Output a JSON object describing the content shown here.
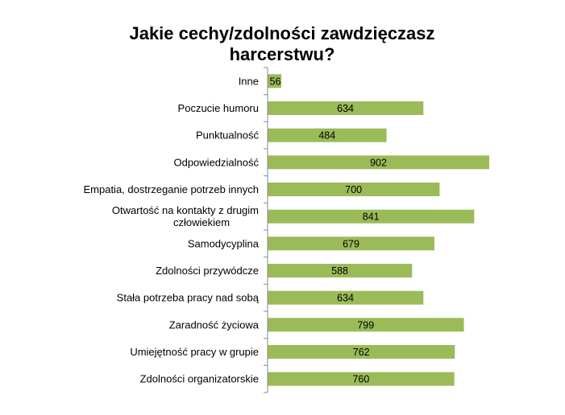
{
  "chart_data": {
    "type": "bar",
    "orientation": "horizontal",
    "title_lines": [
      "Jakie cechy/zdolności zawdzięczasz",
      "harcerstwu?"
    ],
    "categories": [
      "Inne",
      "Poczucie humoru",
      "Punktualność",
      "Odpowiedzialność",
      "Empatia, dostrzeganie potrzeb innych",
      "Otwartość na kontakty z drugim człowiekiem",
      "Samodycyplina",
      "Zdolności przywódcze",
      "Stała potrzeba pracy nad sobą",
      "Zaradność życiowa",
      "Umiejętność pracy w grupie",
      "Zdolności organizatorskie"
    ],
    "category_label_lines": [
      [
        "Inne"
      ],
      [
        "Poczucie humoru"
      ],
      [
        "Punktualność"
      ],
      [
        "Odpowiedzialność"
      ],
      [
        "Empatia, dostrzeganie potrzeb innych"
      ],
      [
        "Otwartość na kontakty z drugim",
        "człowiekiem"
      ],
      [
        "Samodycyplina"
      ],
      [
        "Zdolności przywódcze"
      ],
      [
        "Stała potrzeba pracy nad sobą"
      ],
      [
        "Zaradność życiowa"
      ],
      [
        "Umiejętność pracy w grupie"
      ],
      [
        "Zdolności organizatorskie"
      ]
    ],
    "values": [
      56,
      634,
      484,
      902,
      700,
      841,
      679,
      588,
      634,
      799,
      762,
      760
    ],
    "data_labels": true,
    "xlim": [
      0,
      910
    ],
    "grid": false,
    "legend": "none",
    "bar_color": "#9bbb59",
    "axis_color": "#888888",
    "text_color": "#000000"
  }
}
